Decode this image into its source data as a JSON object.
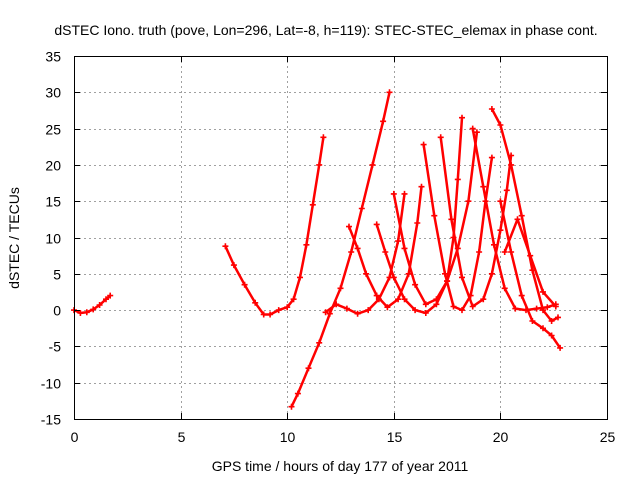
{
  "chart_data": {
    "type": "scatter",
    "title": "dSTEC Iono. truth (pove, Lon=296, Lat=-8, h=119): STEC-STEC_elemax in phase cont.",
    "xlabel": "GPS time / hours of day 177 of year 2011",
    "ylabel": "dSTEC  / TECUs",
    "xlim": [
      0,
      25
    ],
    "ylim": [
      -15,
      35
    ],
    "xticks": [
      0,
      5,
      10,
      15,
      20,
      25
    ],
    "yticks": [
      -15,
      -10,
      -5,
      0,
      5,
      10,
      15,
      20,
      25,
      30,
      35
    ],
    "grid": true,
    "marker": "plus",
    "color": "#ff0000",
    "series": [
      {
        "x": [
          0.0,
          0.3,
          0.6,
          0.9,
          1.2,
          1.5,
          1.7
        ],
        "y": [
          0.0,
          -0.4,
          -0.3,
          0.1,
          0.7,
          1.5,
          2.0
        ]
      },
      {
        "x": [
          7.1,
          7.5,
          8.0,
          8.5,
          8.9,
          9.2,
          9.6,
          10.0,
          10.3,
          10.6,
          10.9,
          11.2,
          11.5,
          11.7
        ],
        "y": [
          8.8,
          6.2,
          3.5,
          1.0,
          -0.6,
          -0.6,
          0.0,
          0.4,
          1.5,
          4.5,
          9.0,
          14.5,
          20.0,
          23.8
        ]
      },
      {
        "x": [
          10.2,
          10.5,
          11.0,
          11.5,
          12.0,
          12.5,
          13.0,
          13.5,
          14.0,
          14.5,
          14.8
        ],
        "y": [
          -13.3,
          -11.5,
          -8.0,
          -4.5,
          -0.5,
          3.0,
          8.0,
          14.0,
          20.0,
          26.0,
          30.0
        ]
      },
      {
        "x": [
          11.8,
          12.3,
          12.8,
          13.3,
          13.8,
          14.3,
          14.8,
          15.2,
          15.5
        ],
        "y": [
          -0.3,
          0.8,
          0.2,
          -0.5,
          0.0,
          1.5,
          4.5,
          9.5,
          16.0
        ]
      },
      {
        "x": [
          12.9,
          13.3,
          13.7,
          14.2,
          14.7,
          15.2,
          15.7,
          16.1,
          16.3
        ],
        "y": [
          11.5,
          8.5,
          5.0,
          2.0,
          0.4,
          1.5,
          5.0,
          12.0,
          17.0
        ]
      },
      {
        "x": [
          14.2,
          14.6,
          15.0,
          15.5,
          16.0,
          16.5,
          17.0,
          17.5,
          17.8,
          18.0,
          18.2
        ],
        "y": [
          11.8,
          8.0,
          4.5,
          1.5,
          0.0,
          -0.4,
          0.8,
          4.0,
          10.0,
          18.0,
          26.5
        ]
      },
      {
        "x": [
          15.0,
          15.5,
          16.0,
          16.5,
          17.0,
          17.5,
          18.0,
          18.5,
          18.9
        ],
        "y": [
          16.0,
          8.5,
          3.5,
          0.8,
          1.5,
          4.0,
          8.5,
          15.0,
          24.5
        ]
      },
      {
        "x": [
          16.4,
          16.9,
          17.4,
          17.8,
          18.2,
          18.6,
          19.0,
          19.3,
          19.6
        ],
        "y": [
          22.8,
          13.0,
          5.0,
          0.5,
          0.0,
          2.0,
          8.0,
          15.0,
          21.0
        ]
      },
      {
        "x": [
          17.2,
          17.7,
          18.2,
          18.7,
          19.2,
          19.6,
          20.0,
          20.3,
          20.5
        ],
        "y": [
          23.8,
          12.5,
          4.5,
          0.5,
          1.5,
          5.0,
          11.0,
          16.5,
          21.3
        ]
      },
      {
        "x": [
          18.7,
          19.2,
          19.7,
          20.2,
          20.7,
          21.2,
          21.7,
          22.2,
          22.6
        ],
        "y": [
          25.0,
          17.0,
          9.0,
          3.0,
          0.2,
          0.0,
          0.2,
          0.4,
          0.8
        ]
      },
      {
        "x": [
          19.6,
          20.0,
          20.5,
          21.0,
          21.5,
          22.0,
          22.4,
          22.7
        ],
        "y": [
          27.7,
          25.5,
          20.0,
          13.0,
          5.5,
          0.0,
          -1.5,
          -1.0
        ]
      },
      {
        "x": [
          20.0,
          20.5,
          21.0,
          21.5,
          22.0,
          22.4,
          22.8
        ],
        "y": [
          15.0,
          8.0,
          2.0,
          -1.5,
          -2.5,
          -3.5,
          -5.2
        ]
      },
      {
        "x": [
          20.2,
          20.8,
          21.4,
          22.0,
          22.6
        ],
        "y": [
          8.0,
          12.5,
          7.5,
          2.5,
          0.5
        ]
      }
    ]
  }
}
